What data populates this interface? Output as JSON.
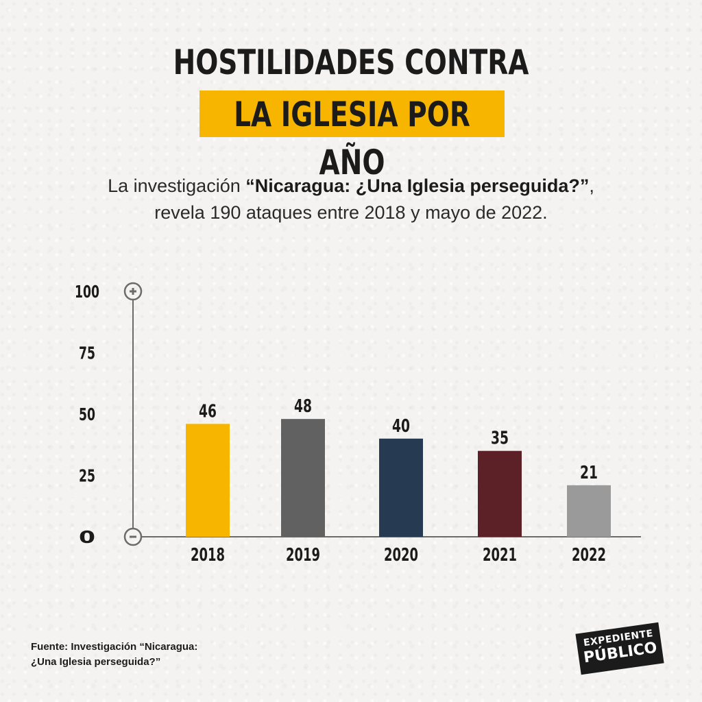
{
  "header": {
    "title_line1": "HOSTILIDADES CONTRA",
    "title_line2": "LA IGLESIA POR AÑO"
  },
  "subtitle": {
    "prefix": "La investigación ",
    "bold": "“Nicaragua: ¿Una Iglesia perseguida?”",
    "suffix": ",",
    "line2": "revela 190 ataques entre 2018 y mayo de 2022."
  },
  "source": {
    "line1": "Fuente: Investigación “Nicaragua:",
    "line2": "¿Una Iglesia perseguida?”"
  },
  "logo": {
    "line1": "EXPEDIENTE",
    "line2": "PÚBLICO"
  },
  "colors": {
    "accent": "#f7b500",
    "bars": [
      "#f7b500",
      "#616161",
      "#263a52",
      "#5c2027",
      "#9a9a9a"
    ]
  },
  "chart_data": {
    "type": "bar",
    "categories": [
      "2018",
      "2019",
      "2020",
      "2021",
      "2022"
    ],
    "values": [
      46,
      48,
      40,
      35,
      21
    ],
    "ylim": [
      0,
      100
    ],
    "yticks": [
      "100",
      "75",
      "50",
      "25",
      "0"
    ],
    "axis_top_icon": "plus-circle-icon",
    "axis_bottom_icon": "minus-circle-icon",
    "grid": false
  }
}
